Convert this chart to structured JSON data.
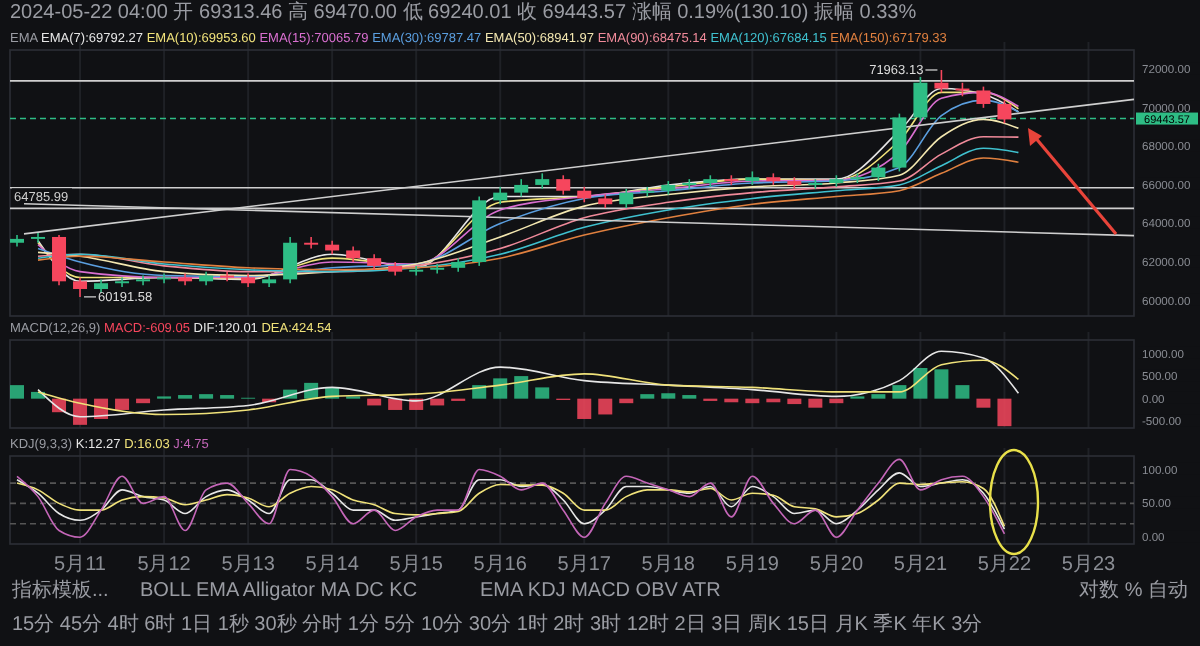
{
  "chart_data": [
    {
      "type": "candlestick",
      "title": "2024-05-22 04:00 开 69313.46 高 69470.00 低 69240.01 收 69443.57 涨幅 0.19%(130.10) 振幅 0.33%",
      "legend_title": "EMA",
      "grid": "x",
      "tick_labels": "y",
      "xlim": [
        "2024-05-10T04:00",
        "2024-05-23T13:00"
      ],
      "xticks": [
        {
          "value": "2024-05-11",
          "label": null
        },
        {
          "value": "2024-05-12",
          "label": null
        },
        {
          "value": "2024-05-13",
          "label": null
        },
        {
          "value": "2024-05-14",
          "label": null
        },
        {
          "value": "2024-05-15",
          "label": null
        },
        {
          "value": "2024-05-16",
          "label": null
        },
        {
          "value": "2024-05-17",
          "label": null
        },
        {
          "value": "2024-05-18",
          "label": null
        },
        {
          "value": "2024-05-19",
          "label": null
        },
        {
          "value": "2024-05-20",
          "label": null
        },
        {
          "value": "2024-05-21",
          "label": null
        },
        {
          "value": "2024-05-22",
          "label": null
        },
        {
          "value": "2024-05-23",
          "label": null
        }
      ],
      "ylim": [
        59200,
        73000
      ],
      "yticks": [
        {
          "value": 60000,
          "label": "60000.00"
        },
        {
          "value": 62000,
          "label": "62000.00"
        },
        {
          "value": 64000,
          "label": "64000.00"
        },
        {
          "value": 66000,
          "label": "66000.00"
        },
        {
          "value": 68000,
          "label": "68000.00"
        },
        {
          "value": 70000,
          "label": "70000.00"
        },
        {
          "value": 72000,
          "label": "72000.00"
        }
      ],
      "x": [
        "2024-05-10T06:00",
        "2024-05-10T12:00",
        "2024-05-10T18:00",
        "2024-05-11T00:00",
        "2024-05-11T06:00",
        "2024-05-11T12:00",
        "2024-05-11T18:00",
        "2024-05-12T00:00",
        "2024-05-12T06:00",
        "2024-05-12T12:00",
        "2024-05-12T18:00",
        "2024-05-13T00:00",
        "2024-05-13T06:00",
        "2024-05-13T12:00",
        "2024-05-13T18:00",
        "2024-05-14T00:00",
        "2024-05-14T06:00",
        "2024-05-14T12:00",
        "2024-05-14T18:00",
        "2024-05-15T00:00",
        "2024-05-15T06:00",
        "2024-05-15T12:00",
        "2024-05-15T18:00",
        "2024-05-16T00:00",
        "2024-05-16T06:00",
        "2024-05-16T12:00",
        "2024-05-16T18:00",
        "2024-05-17T00:00",
        "2024-05-17T06:00",
        "2024-05-17T12:00",
        "2024-05-17T18:00",
        "2024-05-18T00:00",
        "2024-05-18T06:00",
        "2024-05-18T12:00",
        "2024-05-18T18:00",
        "2024-05-19T00:00",
        "2024-05-19T06:00",
        "2024-05-19T12:00",
        "2024-05-19T18:00",
        "2024-05-20T00:00",
        "2024-05-20T06:00",
        "2024-05-20T12:00",
        "2024-05-20T18:00",
        "2024-05-21T00:00",
        "2024-05-21T06:00",
        "2024-05-21T12:00",
        "2024-05-21T18:00",
        "2024-05-22T00:00"
      ],
      "ohlc": [
        [
          63000,
          63400,
          62800,
          63200
        ],
        [
          63200,
          63500,
          63000,
          63300
        ],
        [
          63300,
          63400,
          60800,
          61000
        ],
        [
          61000,
          61200,
          60191.58,
          60600
        ],
        [
          60600,
          61100,
          60400,
          60900
        ],
        [
          60900,
          61200,
          60700,
          61000
        ],
        [
          61000,
          61300,
          60800,
          61100
        ],
        [
          61100,
          61400,
          60900,
          61200
        ],
        [
          61200,
          61400,
          60800,
          61000
        ],
        [
          61000,
          61500,
          60800,
          61300
        ],
        [
          61300,
          61500,
          61000,
          61200
        ],
        [
          61200,
          61400,
          60700,
          60900
        ],
        [
          60900,
          61300,
          60700,
          61100
        ],
        [
          61100,
          63300,
          60900,
          63000
        ],
        [
          63000,
          63300,
          62700,
          62900
        ],
        [
          62900,
          63100,
          62400,
          62600
        ],
        [
          62600,
          62800,
          62000,
          62200
        ],
        [
          62200,
          62400,
          61600,
          61800
        ],
        [
          61800,
          62000,
          61300,
          61500
        ],
        [
          61500,
          61800,
          61300,
          61600
        ],
        [
          61600,
          61900,
          61400,
          61700
        ],
        [
          61700,
          62200,
          61500,
          62000
        ],
        [
          62000,
          65400,
          61800,
          65200
        ],
        [
          65200,
          65900,
          65000,
          65600
        ],
        [
          65600,
          66300,
          65400,
          66000
        ],
        [
          66000,
          66600,
          65800,
          66300
        ],
        [
          66300,
          66500,
          65500,
          65700
        ],
        [
          65700,
          65900,
          65100,
          65300
        ],
        [
          65300,
          65500,
          64800,
          65000
        ],
        [
          65000,
          65800,
          64800,
          65600
        ],
        [
          65600,
          65900,
          65400,
          65700
        ],
        [
          65700,
          66200,
          65500,
          66000
        ],
        [
          66000,
          66300,
          65800,
          66100
        ],
        [
          66100,
          66500,
          65900,
          66300
        ],
        [
          66300,
          66500,
          66000,
          66200
        ],
        [
          66200,
          66700,
          66000,
          66400
        ],
        [
          66400,
          66600,
          66000,
          66200
        ],
        [
          66200,
          66400,
          65800,
          66000
        ],
        [
          66000,
          66300,
          65800,
          66100
        ],
        [
          66100,
          66500,
          65900,
          66300
        ],
        [
          66300,
          66600,
          66100,
          66400
        ],
        [
          66400,
          67100,
          66200,
          66900
        ],
        [
          66900,
          69700,
          66700,
          69500
        ],
        [
          69500,
          71600,
          69300,
          71300
        ],
        [
          71300,
          71963.13,
          70800,
          71000
        ],
        [
          71000,
          71300,
          70600,
          70900
        ],
        [
          70900,
          71100,
          70000,
          70200
        ],
        [
          70200,
          70400,
          69200,
          69400
        ]
      ],
      "series": [
        {
          "name": "EMA(7):69792.27",
          "type": "line",
          "color": "#e6e6e6",
          "x": [
            "2024-05-10T12:00",
            "2024-05-11T00:00",
            "2024-05-12T00:00",
            "2024-05-13T00:00",
            "2024-05-14T00:00",
            "2024-05-15T00:00",
            "2024-05-16T00:00",
            "2024-05-17T00:00",
            "2024-05-18T00:00",
            "2024-05-19T00:00",
            "2024-05-20T00:00",
            "2024-05-20T18:00",
            "2024-05-21T06:00",
            "2024-05-21T18:00",
            "2024-05-22T04:00"
          ],
          "values": [
            63100,
            61000,
            61200,
            61100,
            62400,
            61700,
            65400,
            65400,
            66000,
            66300,
            66300,
            68800,
            71000,
            70700,
            69790
          ]
        },
        {
          "name": "EMA(10):69953.60",
          "type": "line",
          "color": "#f0e27a",
          "x": [
            "2024-05-10T12:00",
            "2024-05-11T00:00",
            "2024-05-12T00:00",
            "2024-05-13T00:00",
            "2024-05-14T00:00",
            "2024-05-15T00:00",
            "2024-05-16T00:00",
            "2024-05-17T00:00",
            "2024-05-18T00:00",
            "2024-05-19T00:00",
            "2024-05-20T00:00",
            "2024-05-20T18:00",
            "2024-05-21T06:00",
            "2024-05-21T18:00",
            "2024-05-22T04:00"
          ],
          "values": [
            63000,
            61200,
            61200,
            61150,
            62200,
            61800,
            65100,
            65400,
            65900,
            66300,
            66250,
            68300,
            70800,
            70800,
            69950
          ]
        },
        {
          "name": "EMA(15):70065.79",
          "type": "line",
          "color": "#d96fd0",
          "x": [
            "2024-05-10T12:00",
            "2024-05-11T00:00",
            "2024-05-12T00:00",
            "2024-05-13T00:00",
            "2024-05-14T00:00",
            "2024-05-15T00:00",
            "2024-05-16T00:00",
            "2024-05-17T00:00",
            "2024-05-18T00:00",
            "2024-05-19T00:00",
            "2024-05-20T00:00",
            "2024-05-20T18:00",
            "2024-05-21T06:00",
            "2024-05-21T18:00",
            "2024-05-22T04:00"
          ],
          "values": [
            62900,
            61500,
            61200,
            61200,
            62000,
            61900,
            64700,
            65400,
            65800,
            66200,
            66250,
            67700,
            70500,
            70800,
            70070
          ]
        },
        {
          "name": "EMA(30):69787.47",
          "type": "line",
          "color": "#5b9fe0",
          "x": [
            "2024-05-10T12:00",
            "2024-05-11T00:00",
            "2024-05-12T00:00",
            "2024-05-13T00:00",
            "2024-05-14T00:00",
            "2024-05-15T00:00",
            "2024-05-16T00:00",
            "2024-05-17T00:00",
            "2024-05-18T00:00",
            "2024-05-19T00:00",
            "2024-05-20T00:00",
            "2024-05-20T18:00",
            "2024-05-21T06:00",
            "2024-05-21T18:00",
            "2024-05-22T04:00"
          ],
          "values": [
            62700,
            62000,
            61300,
            61250,
            61700,
            61900,
            64000,
            65300,
            65700,
            66100,
            66200,
            66900,
            69600,
            70400,
            69790
          ]
        },
        {
          "name": "EMA(50):68941.97",
          "type": "line",
          "color": "#f3e7b0",
          "x": [
            "2024-05-10T12:00",
            "2024-05-11T00:00",
            "2024-05-12T00:00",
            "2024-05-13T00:00",
            "2024-05-14T00:00",
            "2024-05-15T00:00",
            "2024-05-16T00:00",
            "2024-05-17T00:00",
            "2024-05-18T00:00",
            "2024-05-19T00:00",
            "2024-05-20T00:00",
            "2024-05-20T18:00",
            "2024-05-21T06:00",
            "2024-05-21T18:00",
            "2024-05-22T04:00"
          ],
          "values": [
            62500,
            62300,
            61500,
            61300,
            61500,
            61900,
            63300,
            64900,
            65500,
            65900,
            66100,
            66500,
            68500,
            69400,
            68940
          ]
        },
        {
          "name": "EMA(90):68475.14",
          "type": "line",
          "color": "#f08a9a",
          "x": [
            "2024-05-10T12:00",
            "2024-05-11T00:00",
            "2024-05-12T00:00",
            "2024-05-13T00:00",
            "2024-05-14T00:00",
            "2024-05-15T00:00",
            "2024-05-16T00:00",
            "2024-05-17T00:00",
            "2024-05-18T00:00",
            "2024-05-19T00:00",
            "2024-05-20T00:00",
            "2024-05-20T18:00",
            "2024-05-21T06:00",
            "2024-05-21T18:00",
            "2024-05-22T04:00"
          ],
          "values": [
            62300,
            62400,
            61800,
            61500,
            61500,
            61800,
            62700,
            64300,
            65100,
            65600,
            65900,
            66200,
            67600,
            68500,
            68480
          ]
        },
        {
          "name": "EMA(120):67684.15",
          "type": "line",
          "color": "#3fc1cf",
          "x": [
            "2024-05-10T12:00",
            "2024-05-11T00:00",
            "2024-05-12T00:00",
            "2024-05-13T00:00",
            "2024-05-14T00:00",
            "2024-05-15T00:00",
            "2024-05-16T00:00",
            "2024-05-17T00:00",
            "2024-05-18T00:00",
            "2024-05-19T00:00",
            "2024-05-20T00:00",
            "2024-05-20T18:00",
            "2024-05-21T06:00",
            "2024-05-21T18:00",
            "2024-05-22T04:00"
          ],
          "values": [
            62200,
            62400,
            61900,
            61600,
            61500,
            61700,
            62400,
            63800,
            64700,
            65300,
            65700,
            66000,
            67000,
            67900,
            67680
          ]
        },
        {
          "name": "EMA(150):67179.33",
          "type": "line",
          "color": "#e0803f",
          "x": [
            "2024-05-10T12:00",
            "2024-05-11T00:00",
            "2024-05-12T00:00",
            "2024-05-13T00:00",
            "2024-05-14T00:00",
            "2024-05-15T00:00",
            "2024-05-16T00:00",
            "2024-05-17T00:00",
            "2024-05-18T00:00",
            "2024-05-19T00:00",
            "2024-05-20T00:00",
            "2024-05-20T18:00",
            "2024-05-21T06:00",
            "2024-05-21T18:00",
            "2024-05-22T04:00"
          ],
          "values": [
            62100,
            62300,
            62000,
            61700,
            61600,
            61700,
            62200,
            63400,
            64300,
            65000,
            65400,
            65700,
            66600,
            67400,
            67180
          ]
        },
        {
          "type": "line",
          "color": "#cfcfcf",
          "x": [
            "2024-05-10T08:00",
            "2024-05-23T13:00"
          ],
          "values": [
            63460,
            70440
          ]
        },
        {
          "type": "line",
          "color": "#cfcfcf",
          "x": [
            "2024-05-10T08:00",
            "2024-05-23T13:00"
          ],
          "values": [
            65020,
            63370
          ]
        }
      ],
      "ref_lines": [
        {
          "axis": "y",
          "value": 71400,
          "color": "#cfcfcf"
        },
        {
          "axis": "y",
          "value": 65850,
          "color": "#cfcfcf"
        },
        {
          "axis": "y",
          "value": 64785.99,
          "label": "64785.99",
          "color": "#cfcfcf"
        },
        {
          "axis": "y",
          "value": 69443.57,
          "label": "69443.57",
          "color": "#2ebd85",
          "line_style": "dashed"
        }
      ],
      "annotations": [
        {
          "text": "71963.13",
          "x": "2024-05-21T06:00",
          "y": 71963.13
        },
        {
          "text": "60191.58",
          "x": "2024-05-11T00:00",
          "y": 60191.58
        }
      ]
    },
    {
      "type": "bar",
      "legend_title": "MACD(12,26,9)",
      "grid": "x",
      "tick_labels": "y",
      "xlim": [
        "2024-05-10T04:00",
        "2024-05-23T13:00"
      ],
      "xticks": [
        {
          "value": "2024-05-11",
          "label": null
        },
        {
          "value": "2024-05-12",
          "label": null
        },
        {
          "value": "2024-05-13",
          "label": null
        },
        {
          "value": "2024-05-14",
          "label": null
        },
        {
          "value": "2024-05-15",
          "label": null
        },
        {
          "value": "2024-05-16",
          "label": null
        },
        {
          "value": "2024-05-17",
          "label": null
        },
        {
          "value": "2024-05-18",
          "label": null
        },
        {
          "value": "2024-05-19",
          "label": null
        },
        {
          "value": "2024-05-20",
          "label": null
        },
        {
          "value": "2024-05-21",
          "label": null
        },
        {
          "value": "2024-05-22",
          "label": null
        },
        {
          "value": "2024-05-23",
          "label": null
        }
      ],
      "ylim": [
        -650,
        1300
      ],
      "yticks": [
        {
          "value": -500,
          "label": "-500.00"
        },
        {
          "value": 0,
          "label": "0.00"
        },
        {
          "value": 500,
          "label": "500.00"
        },
        {
          "value": 1000,
          "label": "1000.00"
        }
      ],
      "x": [
        "2024-05-10T06:00",
        "2024-05-10T12:00",
        "2024-05-10T18:00",
        "2024-05-11T00:00",
        "2024-05-11T06:00",
        "2024-05-11T12:00",
        "2024-05-11T18:00",
        "2024-05-12T00:00",
        "2024-05-12T06:00",
        "2024-05-12T12:00",
        "2024-05-12T18:00",
        "2024-05-13T00:00",
        "2024-05-13T06:00",
        "2024-05-13T12:00",
        "2024-05-13T18:00",
        "2024-05-14T00:00",
        "2024-05-14T06:00",
        "2024-05-14T12:00",
        "2024-05-14T18:00",
        "2024-05-15T00:00",
        "2024-05-15T06:00",
        "2024-05-15T12:00",
        "2024-05-15T18:00",
        "2024-05-16T00:00",
        "2024-05-16T06:00",
        "2024-05-16T12:00",
        "2024-05-16T18:00",
        "2024-05-17T00:00",
        "2024-05-17T06:00",
        "2024-05-17T12:00",
        "2024-05-17T18:00",
        "2024-05-18T00:00",
        "2024-05-18T06:00",
        "2024-05-18T12:00",
        "2024-05-18T18:00",
        "2024-05-19T00:00",
        "2024-05-19T06:00",
        "2024-05-19T12:00",
        "2024-05-19T18:00",
        "2024-05-20T00:00",
        "2024-05-20T06:00",
        "2024-05-20T12:00",
        "2024-05-20T18:00",
        "2024-05-21T00:00",
        "2024-05-21T06:00",
        "2024-05-21T12:00",
        "2024-05-21T18:00",
        "2024-05-22T00:00"
      ],
      "series": [
        {
          "name": "MACD:-609.05",
          "type": "bar",
          "values": [
            300,
            150,
            -300,
            -580,
            -450,
            -250,
            -100,
            50,
            80,
            100,
            80,
            20,
            -80,
            200,
            350,
            250,
            50,
            -150,
            -250,
            -250,
            -150,
            -50,
            300,
            450,
            500,
            250,
            -30,
            -450,
            -350,
            -100,
            100,
            120,
            80,
            -50,
            -80,
            -100,
            -80,
            -120,
            -200,
            -100,
            50,
            100,
            300,
            680,
            650,
            300,
            -200,
            -610
          ],
          "colors": [
            "#2ebd85",
            "#2ebd85",
            "#f6465d",
            "#f6465d",
            "#f6465d",
            "#f6465d",
            "#f6465d",
            "#2ebd85",
            "#2ebd85",
            "#2ebd85",
            "#2ebd85",
            "#2ebd85",
            "#f6465d",
            "#2ebd85",
            "#2ebd85",
            "#2ebd85",
            "#2ebd85",
            "#f6465d",
            "#f6465d",
            "#f6465d",
            "#f6465d",
            "#f6465d",
            "#2ebd85",
            "#2ebd85",
            "#2ebd85",
            "#2ebd85",
            "#f6465d",
            "#f6465d",
            "#f6465d",
            "#f6465d",
            "#2ebd85",
            "#2ebd85",
            "#2ebd85",
            "#f6465d",
            "#f6465d",
            "#f6465d",
            "#f6465d",
            "#f6465d",
            "#f6465d",
            "#f6465d",
            "#2ebd85",
            "#2ebd85",
            "#2ebd85",
            "#2ebd85",
            "#2ebd85",
            "#2ebd85",
            "#f6465d",
            "#f6465d"
          ]
        },
        {
          "name": "DIF:120.01",
          "type": "line",
          "color": "#e6e6e6",
          "x": [
            "2024-05-10T12:00",
            "2024-05-11T00:00",
            "2024-05-12T00:00",
            "2024-05-13T00:00",
            "2024-05-14T00:00",
            "2024-05-15T00:00",
            "2024-05-16T00:00",
            "2024-05-17T00:00",
            "2024-05-18T00:00",
            "2024-05-19T00:00",
            "2024-05-20T00:00",
            "2024-05-20T18:00",
            "2024-05-21T06:00",
            "2024-05-21T18:00",
            "2024-05-22T04:00"
          ],
          "values": [
            200,
            -400,
            -250,
            -150,
            250,
            -50,
            700,
            400,
            300,
            200,
            50,
            400,
            1050,
            900,
            120
          ]
        },
        {
          "name": "DEA:424.54",
          "type": "line",
          "color": "#f0e27a",
          "x": [
            "2024-05-10T12:00",
            "2024-05-11T00:00",
            "2024-05-12T00:00",
            "2024-05-13T00:00",
            "2024-05-14T00:00",
            "2024-05-15T00:00",
            "2024-05-16T00:00",
            "2024-05-17T00:00",
            "2024-05-18T00:00",
            "2024-05-19T00:00",
            "2024-05-20T00:00",
            "2024-05-20T18:00",
            "2024-05-21T06:00",
            "2024-05-21T18:00",
            "2024-05-22T04:00"
          ],
          "values": [
            150,
            -100,
            -350,
            -250,
            50,
            100,
            300,
            550,
            300,
            250,
            150,
            150,
            750,
            850,
            425
          ]
        }
      ]
    },
    {
      "type": "line",
      "legend_title": "KDJ(9,3,3)",
      "grid": "x",
      "xlim": [
        "2024-05-10T04:00",
        "2024-05-23T13:00"
      ],
      "xticks": [
        {
          "value": "2024-05-11",
          "label": "5月11"
        },
        {
          "value": "2024-05-12",
          "label": "5月12"
        },
        {
          "value": "2024-05-13",
          "label": "5月13"
        },
        {
          "value": "2024-05-14",
          "label": "5月14"
        },
        {
          "value": "2024-05-15",
          "label": "5月15"
        },
        {
          "value": "2024-05-16",
          "label": "5月16"
        },
        {
          "value": "2024-05-17",
          "label": "5月17"
        },
        {
          "value": "2024-05-18",
          "label": "5月18"
        },
        {
          "value": "2024-05-19",
          "label": "5月19"
        },
        {
          "value": "2024-05-20",
          "label": "5月20"
        },
        {
          "value": "2024-05-21",
          "label": "5月21"
        },
        {
          "value": "2024-05-22",
          "label": "5月22"
        },
        {
          "value": "2024-05-23",
          "label": "5月23"
        }
      ],
      "ylim": [
        -10,
        120
      ],
      "yticks": [
        {
          "value": 0,
          "label": "0.00"
        },
        {
          "value": 50,
          "label": "50.00"
        },
        {
          "value": 100,
          "label": "100.00"
        }
      ],
      "x": [
        "2024-05-10T06:00",
        "2024-05-10T12:00",
        "2024-05-10T18:00",
        "2024-05-11T00:00",
        "2024-05-11T06:00",
        "2024-05-11T12:00",
        "2024-05-11T18:00",
        "2024-05-12T00:00",
        "2024-05-12T06:00",
        "2024-05-12T12:00",
        "2024-05-12T18:00",
        "2024-05-13T00:00",
        "2024-05-13T06:00",
        "2024-05-13T12:00",
        "2024-05-13T18:00",
        "2024-05-14T00:00",
        "2024-05-14T06:00",
        "2024-05-14T12:00",
        "2024-05-14T18:00",
        "2024-05-15T00:00",
        "2024-05-15T06:00",
        "2024-05-15T12:00",
        "2024-05-15T18:00",
        "2024-05-16T00:00",
        "2024-05-16T06:00",
        "2024-05-16T12:00",
        "2024-05-16T18:00",
        "2024-05-17T00:00",
        "2024-05-17T06:00",
        "2024-05-17T12:00",
        "2024-05-17T18:00",
        "2024-05-18T00:00",
        "2024-05-18T06:00",
        "2024-05-18T12:00",
        "2024-05-18T18:00",
        "2024-05-19T00:00",
        "2024-05-19T06:00",
        "2024-05-19T12:00",
        "2024-05-19T18:00",
        "2024-05-20T00:00",
        "2024-05-20T06:00",
        "2024-05-20T12:00",
        "2024-05-20T18:00",
        "2024-05-21T00:00",
        "2024-05-21T06:00",
        "2024-05-21T12:00",
        "2024-05-21T18:00",
        "2024-05-22T00:00"
      ],
      "series": [
        {
          "name": "K:12.27",
          "color": "#e6e6e6",
          "values": [
            85,
            65,
            35,
            25,
            40,
            70,
            60,
            55,
            35,
            60,
            70,
            55,
            35,
            85,
            85,
            65,
            40,
            40,
            25,
            30,
            35,
            40,
            85,
            85,
            75,
            78,
            55,
            20,
            40,
            75,
            75,
            70,
            65,
            75,
            45,
            75,
            60,
            35,
            40,
            20,
            40,
            70,
            95,
            75,
            80,
            85,
            65,
            12
          ]
        },
        {
          "name": "D:16.03",
          "color": "#f0e27a",
          "values": [
            80,
            70,
            50,
            40,
            40,
            55,
            60,
            58,
            48,
            55,
            63,
            58,
            45,
            65,
            75,
            70,
            55,
            48,
            35,
            33,
            35,
            38,
            65,
            78,
            77,
            77,
            65,
            40,
            40,
            60,
            70,
            70,
            67,
            72,
            55,
            65,
            62,
            45,
            42,
            30,
            35,
            55,
            80,
            78,
            80,
            82,
            72,
            16
          ]
        },
        {
          "name": "J:4.75",
          "color": "#c466b8",
          "values": [
            90,
            60,
            10,
            0,
            40,
            90,
            50,
            60,
            10,
            70,
            80,
            50,
            20,
            100,
            90,
            60,
            20,
            40,
            10,
            30,
            40,
            40,
            100,
            90,
            70,
            80,
            40,
            0,
            50,
            90,
            80,
            70,
            60,
            80,
            30,
            90,
            50,
            20,
            40,
            0,
            40,
            80,
            115,
            70,
            85,
            90,
            60,
            5
          ]
        }
      ],
      "ref_lines": [
        {
          "axis": "y",
          "value": 20,
          "color": "#555555",
          "line_style": "dashed"
        },
        {
          "axis": "y",
          "value": 50,
          "color": "#555555",
          "line_style": "dashed"
        },
        {
          "axis": "y",
          "value": 80,
          "color": "#555555",
          "line_style": "dashed"
        }
      ],
      "annotations": [
        "指标模板...",
        "BOLL EMA Alligator MA DC KC",
        "EMA KDJ MACD OBV ATR",
        "对数 % 自动",
        "15分 45分 4时 6时 1日 1秒 30秒 分时 1分 5分 10分 30分 1时 2时 3时 12时 2日 3日 周K 15日 月K 季K 年K 3分"
      ]
    }
  ]
}
